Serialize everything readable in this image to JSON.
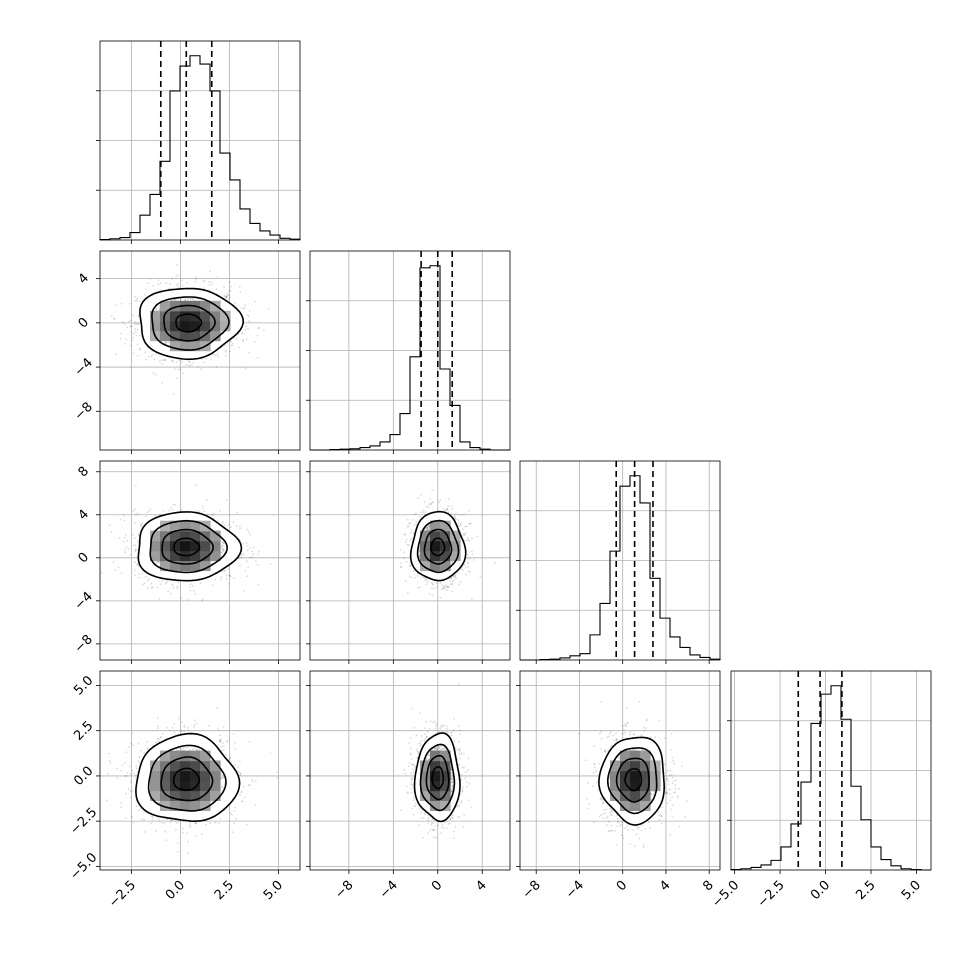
{
  "chart_data": {
    "type": "corner",
    "variables": [
      {
        "index": 0,
        "range": [
          -4.1,
          6.1
        ],
        "ticks": [
          -2.5,
          0.0,
          2.5,
          5.0
        ],
        "tick_labels": [
          "−2.5",
          "0.0",
          "2.5",
          "5.0"
        ],
        "quantiles": [
          -1.0,
          0.3,
          1.6
        ],
        "mean": 0.3,
        "sd": 1.3,
        "hist_counts": [
          1,
          3,
          6,
          18,
          60,
          110,
          190,
          360,
          420,
          445,
          425,
          360,
          210,
          145,
          75,
          40,
          22,
          12,
          4,
          2
        ]
      },
      {
        "index": 1,
        "range": [
          -11.5,
          6.5
        ],
        "ticks": [
          -8,
          -4,
          0,
          4
        ],
        "tick_labels": [
          "−8",
          "−4",
          "0",
          "4"
        ],
        "quantiles": [
          -1.5,
          0.0,
          1.3
        ],
        "mean": 0.0,
        "sd": 1.4,
        "hist_counts": [
          0,
          0,
          1,
          2,
          3,
          6,
          10,
          20,
          38,
          90,
          230,
          450,
          455,
          200,
          110,
          20,
          6,
          2,
          0,
          0
        ]
      },
      {
        "index": 2,
        "range": [
          -9.5,
          9.0
        ],
        "ticks": [
          -8,
          -4,
          0,
          4,
          8
        ],
        "tick_labels": [
          "−8",
          "−4",
          "0",
          "4",
          "8"
        ],
        "quantiles": [
          -0.6,
          1.1,
          2.8
        ],
        "mean": 1.0,
        "sd": 1.7,
        "hist_counts": [
          0,
          0,
          1,
          2,
          5,
          10,
          15,
          60,
          135,
          260,
          415,
          440,
          375,
          195,
          100,
          55,
          30,
          12,
          6,
          2
        ]
      },
      {
        "index": 3,
        "range": [
          -5.2,
          5.8
        ],
        "ticks": [
          -5.0,
          -2.5,
          0.0,
          2.5,
          5.0
        ],
        "tick_labels": [
          "−5.0",
          "−2.5",
          "0.0",
          "2.5",
          "5.0"
        ],
        "quantiles": [
          -1.5,
          -0.3,
          0.9
        ],
        "mean": -0.2,
        "sd": 1.2,
        "hist_counts": [
          1,
          3,
          6,
          12,
          23,
          55,
          110,
          210,
          350,
          420,
          440,
          360,
          200,
          120,
          55,
          25,
          10,
          3,
          1,
          0
        ]
      }
    ],
    "pairs": [
      {
        "row": 1,
        "col": 0,
        "center": [
          0.4,
          0.0
        ],
        "sd": [
          1.3,
          1.6
        ],
        "rho": 0.0
      },
      {
        "row": 2,
        "col": 0,
        "center": [
          0.3,
          1.0
        ],
        "sd": [
          1.3,
          1.6
        ],
        "rho": 0.0
      },
      {
        "row": 2,
        "col": 1,
        "center": [
          0.0,
          1.0
        ],
        "sd": [
          1.2,
          1.6
        ],
        "rho": 0.0
      },
      {
        "row": 3,
        "col": 0,
        "center": [
          0.3,
          -0.2
        ],
        "sd": [
          1.3,
          1.2
        ],
        "rho": 0.0
      },
      {
        "row": 3,
        "col": 1,
        "center": [
          0.0,
          -0.1
        ],
        "sd": [
          1.0,
          1.2
        ],
        "rho": 0.0
      },
      {
        "row": 3,
        "col": 2,
        "center": [
          1.0,
          -0.2
        ],
        "sd": [
          1.5,
          1.2
        ],
        "rho": 0.0
      }
    ],
    "contour_levels_sigma": [
      0.5,
      1.0,
      1.5,
      2.0
    ],
    "grid": true
  }
}
